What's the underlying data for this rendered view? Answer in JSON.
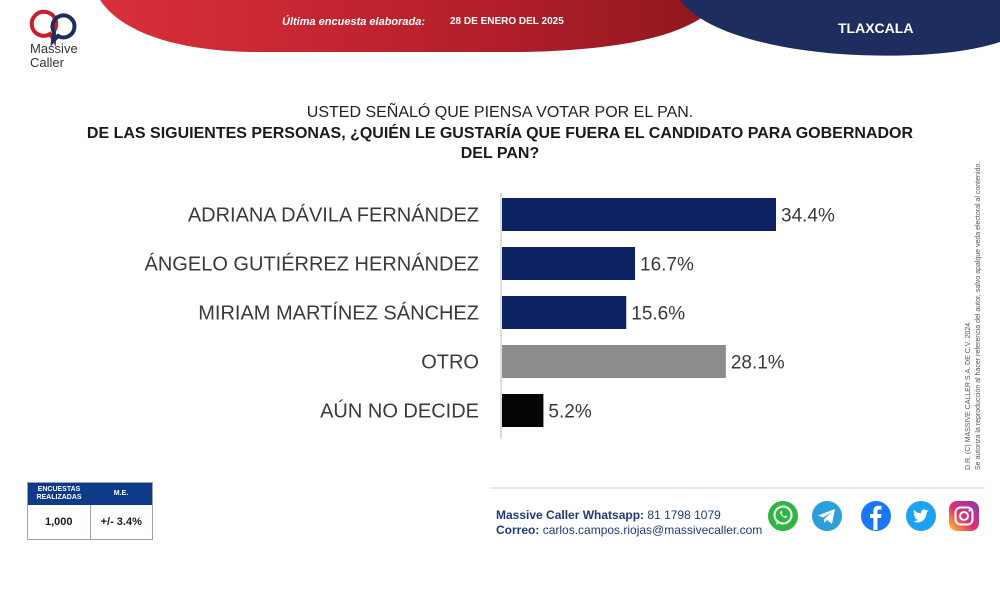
{
  "header": {
    "survey_label": "Última encuesta elaborada:",
    "survey_date": "28 DE ENERO DEL 2025",
    "state": "TLAXCALA"
  },
  "brand": {
    "name_line1": "Massive",
    "name_line2": "Caller"
  },
  "question": {
    "line1": "USTED SEÑALÓ QUE PIENSA VOTAR POR EL PAN.",
    "line2": "DE LAS SIGUIENTES PERSONAS, ¿QUIÉN LE GUSTARÍA QUE FUERA EL CANDIDATO PARA GOBERNADOR DEL PAN?"
  },
  "chart_data": {
    "type": "bar",
    "orientation": "horizontal",
    "categories": [
      "ADRIANA DÁVILA FERNÁNDEZ",
      "ÁNGELO GUTIÉRREZ HERNÁNDEZ",
      "MIRIAM MARTÍNEZ SÁNCHEZ",
      "OTRO",
      "AÚN NO DECIDE"
    ],
    "values": [
      34.4,
      16.7,
      15.6,
      28.1,
      5.2
    ],
    "value_labels": [
      "34.4%",
      "16.7%",
      "15.6%",
      "28.1%",
      "5.2%"
    ],
    "colors": [
      "#0d2260",
      "#0d2260",
      "#0d2260",
      "#8c8c8c",
      "#050505"
    ],
    "xlim": [
      0,
      100
    ]
  },
  "side_note": {
    "line1": "D.R. (C) MASSIVE CALLER S.A. DE C.V. 2024.",
    "line2": "Se autoriza la reproducción al hacer referencia del autor, salvo apalque veda electoral al contenido."
  },
  "stats": {
    "head1": "ENCUESTAS REALIZADAS",
    "head2": "M.E.",
    "value1": "1,000",
    "value2": "+/- 3.4%"
  },
  "contact": {
    "whatsapp_label": "Massive Caller Whatsapp:",
    "whatsapp": "81 1798 1079",
    "email_label": "Correo:",
    "email": "carlos.campos.riojas@massivecaller.com"
  },
  "social_icons": [
    "whatsapp-icon",
    "telegram-icon",
    "facebook-icon",
    "twitter-icon",
    "instagram-icon"
  ],
  "colors": {
    "header_red": "#b51f2a",
    "header_navy": "#1c2d5e",
    "bar_navy": "#0d2260",
    "bar_gray": "#8c8c8c",
    "bar_black": "#050505"
  }
}
